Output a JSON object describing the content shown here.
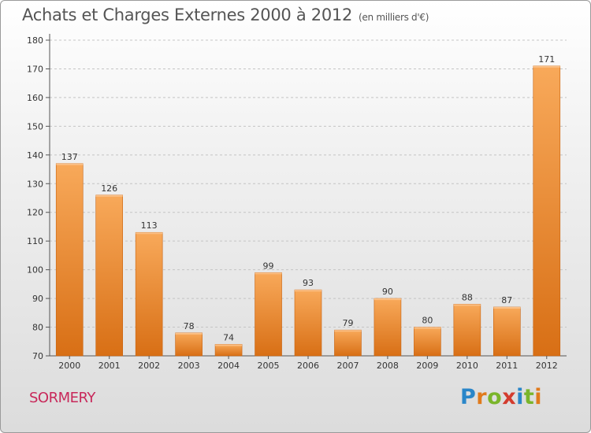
{
  "title": "Achats et Charges Externes 2000 à 2012",
  "subtitle": "(en milliers d'€)",
  "place": "SORMERY",
  "logo": {
    "letters": [
      "P",
      "r",
      "o",
      "x",
      "i",
      "t",
      "i"
    ],
    "colors": [
      "#2a86c9",
      "#e07a1c",
      "#7ab52b",
      "#d33c2e",
      "#2a86c9",
      "#7ab52b",
      "#e07a1c"
    ]
  },
  "colors": {
    "bar_top": "#f8a95a",
    "bar_bottom": "#d86f15",
    "bar_side": "#c8620e",
    "grid": "#c4c4c4",
    "text": "#333333"
  },
  "chart_data": {
    "type": "bar",
    "categories": [
      "2000",
      "2001",
      "2002",
      "2003",
      "2004",
      "2005",
      "2006",
      "2007",
      "2008",
      "2009",
      "2010",
      "2011",
      "2012"
    ],
    "values": [
      137,
      126,
      113,
      78,
      74,
      99,
      93,
      79,
      90,
      80,
      88,
      87,
      171
    ],
    "yticks": [
      70,
      80,
      90,
      100,
      110,
      120,
      130,
      140,
      150,
      160,
      170,
      180
    ],
    "ylim": [
      70,
      180
    ],
    "grid": true,
    "title": "Achats et Charges Externes 2000 à 2012",
    "xlabel": "",
    "ylabel": ""
  }
}
